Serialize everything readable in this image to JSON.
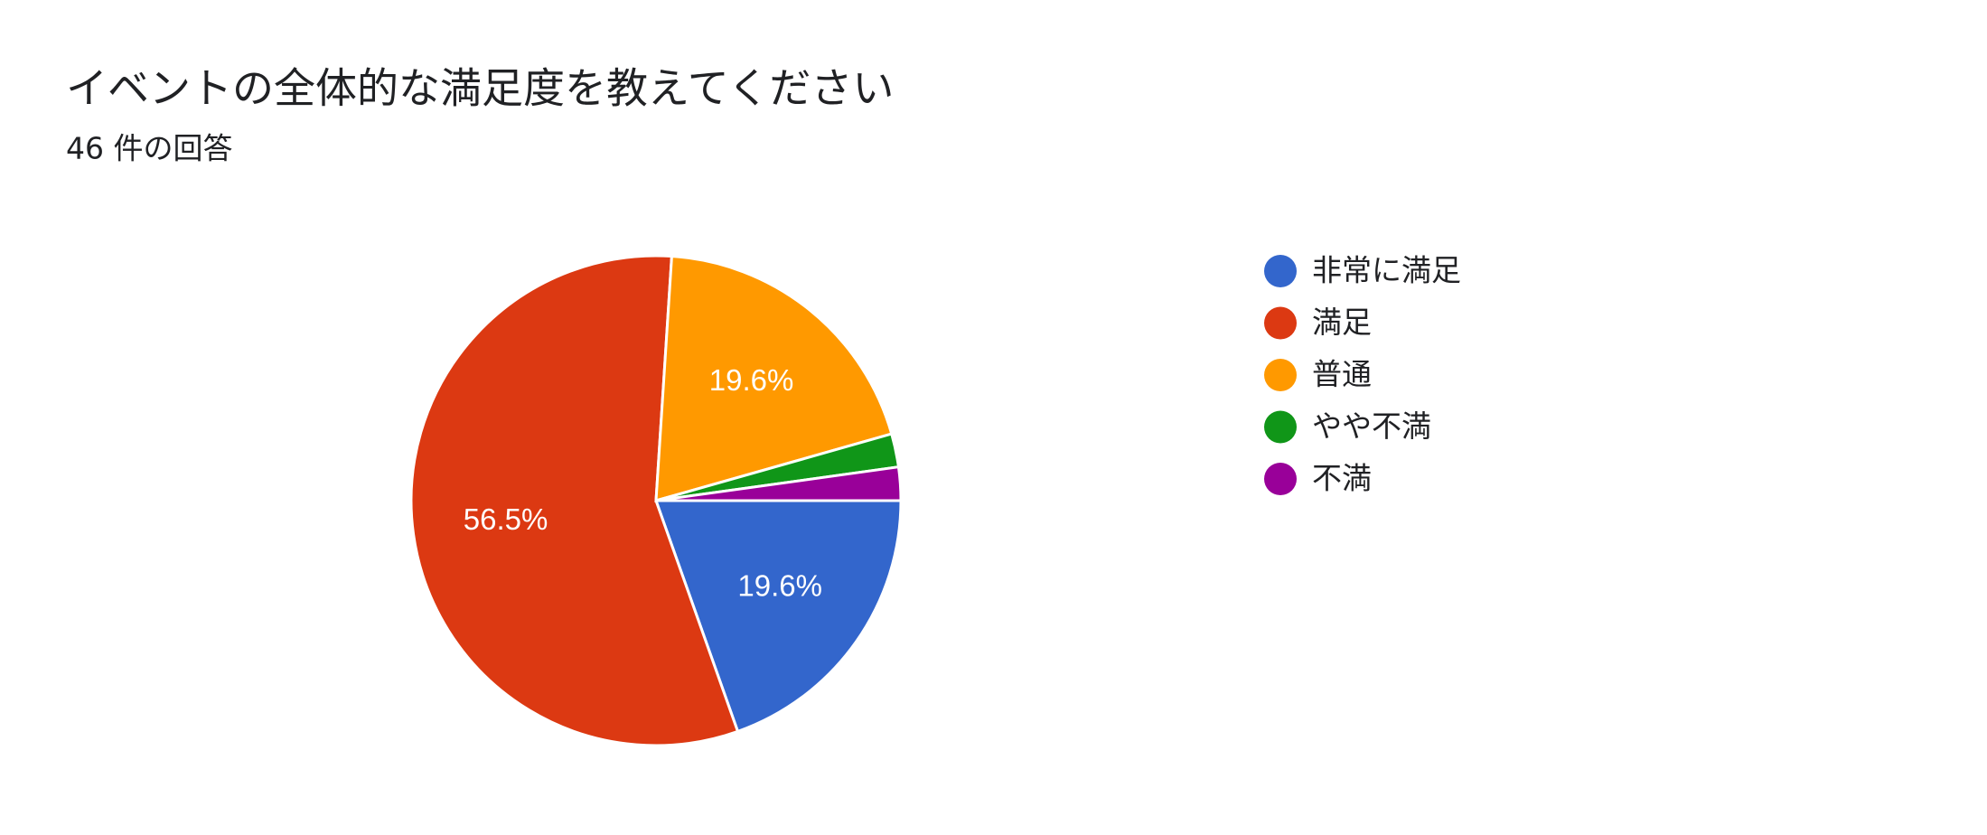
{
  "chart_data": {
    "type": "pie",
    "title": "イベントの全体的な満足度を教えてください",
    "subtitle": "46 件の回答",
    "categories": [
      "非常に満足",
      "満足",
      "普通",
      "やや不満",
      "不満"
    ],
    "values": [
      19.6,
      56.5,
      19.6,
      2.2,
      2.2
    ],
    "value_labels": [
      "19.6%",
      "56.5%",
      "19.6%",
      null,
      null
    ],
    "colors": [
      "#3366cc",
      "#dc3912",
      "#ff9900",
      "#109618",
      "#990099"
    ],
    "legend": "right"
  }
}
